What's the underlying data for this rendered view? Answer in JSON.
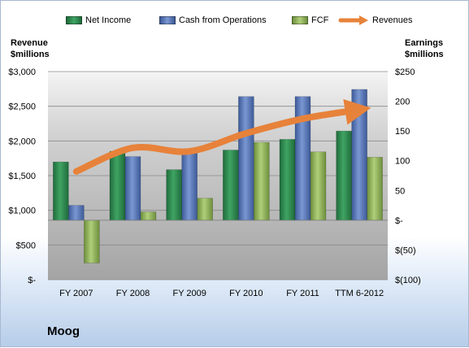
{
  "company": "Moog",
  "legend": {
    "net_income": "Net Income",
    "cfo": "Cash from Operations",
    "fcf": "FCF",
    "revenues": "Revenues"
  },
  "left_axis_title": [
    "Revenue",
    "$millions"
  ],
  "right_axis_title": [
    "Earnings",
    "$millions"
  ],
  "colors": {
    "net_income": "#2f8a4f",
    "cfo": "#5a78b6",
    "fcf": "#8fb25a",
    "revenues": "#e7823a"
  },
  "chart_data": {
    "type": "bar",
    "categories": [
      "FY 2007",
      "FY 2008",
      "FY 2009",
      "FY 2010",
      "FY 2011",
      "TTM 6-2012"
    ],
    "left_axis": {
      "ylim": [
        0,
        3000
      ],
      "ticks": [
        0,
        500,
        1000,
        1500,
        2000,
        2500,
        3000
      ],
      "tick_labels": [
        "$-",
        "$500",
        "$1,000",
        "$1,500",
        "$2,000",
        "$2,500",
        "$3,000"
      ]
    },
    "right_axis": {
      "ylim": [
        -100,
        250
      ],
      "ticks": [
        -100,
        -50,
        0,
        50,
        100,
        150,
        200,
        250
      ],
      "tick_labels": [
        "$(100)",
        "$(50)",
        "$-",
        "50",
        "100",
        "150",
        "200",
        "$250"
      ]
    },
    "series": [
      {
        "name": "Net Income",
        "axis": "right",
        "values": [
          98,
          116,
          85,
          118,
          136,
          150
        ]
      },
      {
        "name": "Cash from Operations",
        "axis": "right",
        "values": [
          25,
          107,
          119,
          208,
          208,
          220
        ]
      },
      {
        "name": "FCF",
        "axis": "right",
        "values": [
          -72,
          14,
          37,
          131,
          115,
          106
        ]
      },
      {
        "name": "Revenues",
        "axis": "left",
        "type": "line",
        "values": [
          1560,
          1900,
          1850,
          2110,
          2320,
          2450
        ]
      }
    ],
    "grid": true,
    "legend_position": "top"
  }
}
